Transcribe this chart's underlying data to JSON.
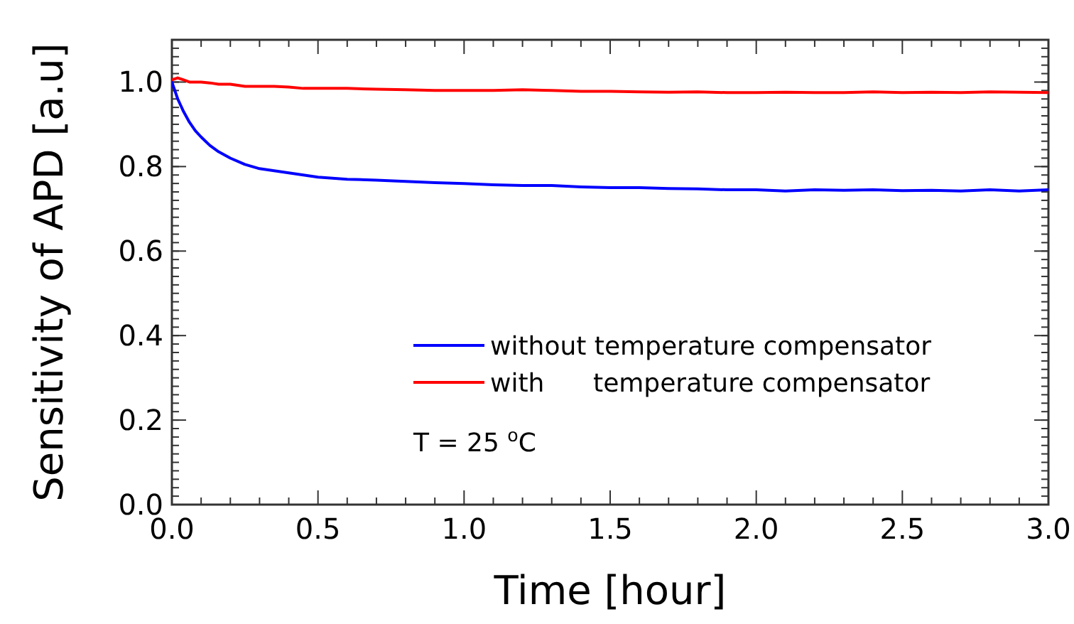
{
  "chart_data": {
    "type": "line",
    "xlabel": "Time [hour]",
    "ylabel": "Sensitivity of APD [a.u]",
    "x": [
      0,
      0.02,
      0.04,
      0.06,
      0.08,
      0.1,
      0.13,
      0.16,
      0.2,
      0.25,
      0.3,
      0.35,
      0.4,
      0.45,
      0.5,
      0.6,
      0.7,
      0.8,
      0.9,
      1.0,
      1.1,
      1.2,
      1.3,
      1.4,
      1.5,
      1.6,
      1.7,
      1.8,
      1.9,
      2.0,
      2.1,
      2.2,
      2.3,
      2.4,
      2.5,
      2.6,
      2.7,
      2.8,
      2.9,
      3.0
    ],
    "series": [
      {
        "name": "without temperature compensator",
        "color": "#0000ff",
        "values": [
          1.0,
          0.96,
          0.93,
          0.905,
          0.885,
          0.87,
          0.85,
          0.835,
          0.82,
          0.805,
          0.795,
          0.79,
          0.785,
          0.78,
          0.775,
          0.77,
          0.768,
          0.765,
          0.762,
          0.76,
          0.757,
          0.755,
          0.755,
          0.752,
          0.75,
          0.75,
          0.748,
          0.747,
          0.745,
          0.745,
          0.742,
          0.745,
          0.744,
          0.745,
          0.743,
          0.744,
          0.742,
          0.745,
          0.742,
          0.745
        ]
      },
      {
        "name": "with      temperature compensator",
        "color": "#ff0000",
        "values": [
          1.005,
          1.01,
          1.005,
          1.0,
          1.0,
          1.0,
          0.998,
          0.995,
          0.995,
          0.99,
          0.99,
          0.99,
          0.988,
          0.985,
          0.985,
          0.985,
          0.983,
          0.982,
          0.98,
          0.98,
          0.98,
          0.982,
          0.98,
          0.978,
          0.978,
          0.977,
          0.976,
          0.977,
          0.975,
          0.975,
          0.976,
          0.975,
          0.975,
          0.977,
          0.975,
          0.976,
          0.975,
          0.977,
          0.976,
          0.975
        ]
      }
    ],
    "xlim": [
      0,
      3.0
    ],
    "ylim": [
      0,
      1.1
    ],
    "xticks": [
      {
        "value": 0,
        "label": "0.0"
      },
      {
        "value": 0.1,
        "label": null
      },
      {
        "value": 0.2,
        "label": null
      },
      {
        "value": 0.3,
        "label": null
      },
      {
        "value": 0.4,
        "label": null
      },
      0.5,
      {
        "value": 0.6,
        "label": null
      },
      {
        "value": 0.7,
        "label": null
      },
      {
        "value": 0.8,
        "label": null
      },
      {
        "value": 0.9,
        "label": null
      },
      {
        "value": 1,
        "label": "1.0"
      },
      {
        "value": 1.1,
        "label": null
      },
      {
        "value": 1.2,
        "label": null
      },
      {
        "value": 1.3,
        "label": null
      },
      {
        "value": 1.4,
        "label": null
      },
      1.5,
      {
        "value": 1.6,
        "label": null
      },
      {
        "value": 1.7,
        "label": null
      },
      {
        "value": 1.8,
        "label": null
      },
      {
        "value": 1.9,
        "label": null
      },
      {
        "value": 2,
        "label": "2.0"
      },
      {
        "value": 2.1,
        "label": null
      },
      {
        "value": 2.2,
        "label": null
      },
      {
        "value": 2.3,
        "label": null
      },
      {
        "value": 2.4,
        "label": null
      },
      2.5,
      {
        "value": 2.6,
        "label": null
      },
      {
        "value": 2.7,
        "label": null
      },
      {
        "value": 2.8,
        "label": null
      },
      {
        "value": 2.9,
        "label": null
      },
      {
        "value": 3,
        "label": "3.0"
      }
    ],
    "yticks": [
      {
        "value": 0,
        "label": "0.0"
      },
      0.2,
      0.4,
      0.6,
      0.8,
      {
        "value": 1,
        "label": "1.0"
      }
    ],
    "legend": "bottom right",
    "grid": false,
    "marker": "none",
    "line_style": "solid",
    "annotations": [
      "T = 25 $^{o}$C"
    ]
  }
}
